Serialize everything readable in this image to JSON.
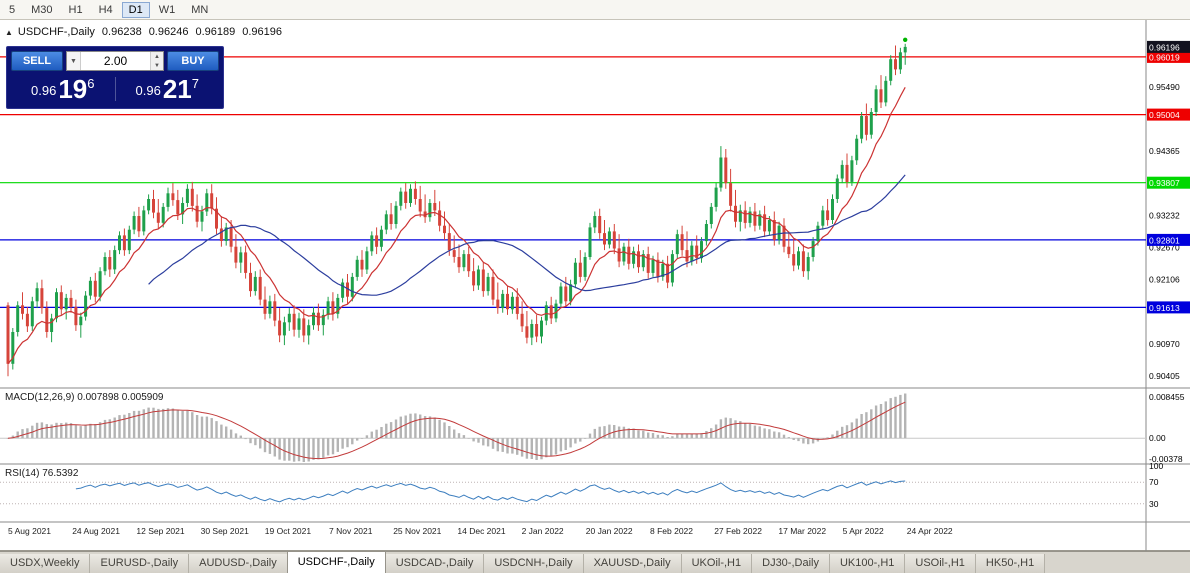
{
  "toolbar": {
    "timeframes": [
      "5",
      "M30",
      "H1",
      "H4",
      "D1",
      "W1",
      "MN"
    ],
    "active": "D1"
  },
  "chart": {
    "title": {
      "icon": "▲",
      "symbol": "USDCHF-,Daily",
      "open": "0.96238",
      "high": "0.96246",
      "low": "0.96189",
      "close": "0.96196"
    },
    "trade_panel": {
      "sell_label": "SELL",
      "buy_label": "BUY",
      "volume": "2.00",
      "icons": {
        "dropdown": "▼",
        "up": "▲",
        "down": "▼"
      },
      "sell_price": {
        "small": "0.96",
        "big": "19",
        "sup": "6"
      },
      "buy_price": {
        "small": "0.96",
        "big": "21",
        "sup": "7"
      }
    },
    "hlines": [
      {
        "price": 0.96019,
        "color": "#ee0000",
        "label": "0.96019"
      },
      {
        "price": 0.95004,
        "color": "#ee0000",
        "label": "0.95004"
      },
      {
        "price": 0.93807,
        "color": "#00d800",
        "label": "0.93807"
      },
      {
        "price": 0.92801,
        "color": "#0000dd",
        "label": "0.92801"
      },
      {
        "price": 0.91613,
        "color": "#0000dd",
        "label": "0.91613"
      }
    ],
    "current_price": {
      "value": 0.96196,
      "label": "0.96196",
      "bg": "#12121f"
    },
    "y_ticks": [
      "0.95490",
      "0.94365",
      "0.93232",
      "0.92670",
      "0.92106",
      "0.90970",
      "0.90405"
    ]
  },
  "macd": {
    "label": "MACD(12,26,9) 0.007898 0.005909",
    "fast": 12,
    "slow": 26,
    "signal_period": 9,
    "value": "0.007898",
    "signal": "0.005909",
    "axis": {
      "top": "0.008455",
      "zero": "0.00",
      "bottom": "-0.00378"
    }
  },
  "rsi": {
    "label": "RSI(14) 76.5392",
    "period": 14,
    "value": "76.5392",
    "levels": [
      "100",
      "70",
      "30"
    ]
  },
  "dates": [
    "5 Aug 2021",
    "24 Aug 2021",
    "12 Sep 2021",
    "30 Sep 2021",
    "19 Oct 2021",
    "7 Nov 2021",
    "25 Nov 2021",
    "14 Dec 2021",
    "2 Jan 2022",
    "20 Jan 2022",
    "8 Feb 2022",
    "27 Feb 2022",
    "17 Mar 2022",
    "5 Apr 2022",
    "24 Apr 2022"
  ],
  "tabs": {
    "active_index": 3,
    "items": [
      "USDX,Weekly",
      "EURUSD-,Daily",
      "AUDUSD-,Daily",
      "USDCHF-,Daily",
      "USDCAD-,Daily",
      "USDCNH-,Daily",
      "XAUUSD-,Daily",
      "UKOil-,H1",
      "DJ30-,Daily",
      "UK100-,H1",
      "USOil-,H1",
      "HK50-,H1"
    ],
    "note": "active tab is USDCHF-,Daily"
  },
  "chart_data": {
    "type": "candlestick",
    "symbol": "USDCHF",
    "timeframe": "Daily",
    "title": "USDCHF-,Daily",
    "y_domain": [
      0.9023,
      0.96493
    ],
    "x_step": 4.85,
    "x_labels": [
      "5 Aug 2021",
      "24 Aug 2021",
      "12 Sep 2021",
      "30 Sep 2021",
      "19 Oct 2021",
      "7 Nov 2021",
      "25 Nov 2021",
      "14 Dec 2021",
      "2 Jan 2022",
      "20 Jan 2022",
      "8 Feb 2022",
      "27 Feb 2022",
      "17 Mar 2022",
      "5 Apr 2022",
      "24 Apr 2022"
    ],
    "ma_fast_period": 10,
    "ma_slow_period": 30,
    "colors": {
      "up": "#1ea04b",
      "down": "#d6443a",
      "ma_fast": "#cc3333",
      "ma_slow": "#2c3e9e",
      "macd_hist": "#b4b4b4",
      "macd_signal": "#c23b3b",
      "rsi": "#3c7ebf"
    },
    "candles": [
      [
        0.9165,
        0.917,
        0.904,
        0.9062
      ],
      [
        0.9062,
        0.9125,
        0.9052,
        0.9118
      ],
      [
        0.9118,
        0.9172,
        0.911,
        0.9165
      ],
      [
        0.9165,
        0.9188,
        0.914,
        0.915
      ],
      [
        0.915,
        0.9162,
        0.9118,
        0.9128
      ],
      [
        0.9128,
        0.918,
        0.912,
        0.9172
      ],
      [
        0.9172,
        0.9205,
        0.916,
        0.9195
      ],
      [
        0.9195,
        0.921,
        0.915,
        0.916
      ],
      [
        0.916,
        0.9172,
        0.9108,
        0.9118
      ],
      [
        0.9118,
        0.915,
        0.91,
        0.9142
      ],
      [
        0.9142,
        0.9195,
        0.9135,
        0.9188
      ],
      [
        0.9188,
        0.92,
        0.9148,
        0.9158
      ],
      [
        0.9158,
        0.9185,
        0.914,
        0.9178
      ],
      [
        0.9178,
        0.9192,
        0.9152,
        0.9162
      ],
      [
        0.9162,
        0.9175,
        0.912,
        0.913
      ],
      [
        0.913,
        0.9152,
        0.9108,
        0.9145
      ],
      [
        0.9145,
        0.919,
        0.9138,
        0.9182
      ],
      [
        0.9182,
        0.9215,
        0.9175,
        0.9208
      ],
      [
        0.9208,
        0.9222,
        0.917,
        0.918
      ],
      [
        0.918,
        0.9232,
        0.9172,
        0.9225
      ],
      [
        0.9225,
        0.9258,
        0.9218,
        0.925
      ],
      [
        0.925,
        0.9262,
        0.9215,
        0.9228
      ],
      [
        0.9228,
        0.927,
        0.922,
        0.9262
      ],
      [
        0.9262,
        0.9295,
        0.9255,
        0.9288
      ],
      [
        0.9288,
        0.93,
        0.9252,
        0.9262
      ],
      [
        0.9262,
        0.9305,
        0.9255,
        0.9298
      ],
      [
        0.9298,
        0.933,
        0.929,
        0.9322
      ],
      [
        0.9322,
        0.9338,
        0.9285,
        0.9295
      ],
      [
        0.9295,
        0.934,
        0.9288,
        0.9332
      ],
      [
        0.9332,
        0.936,
        0.9325,
        0.9352
      ],
      [
        0.9352,
        0.9368,
        0.9318,
        0.9328
      ],
      [
        0.9328,
        0.9352,
        0.93,
        0.931
      ],
      [
        0.931,
        0.9345,
        0.9302,
        0.9338
      ],
      [
        0.9338,
        0.9372,
        0.933,
        0.9362
      ],
      [
        0.9362,
        0.938,
        0.934,
        0.935
      ],
      [
        0.935,
        0.9368,
        0.9315,
        0.9325
      ],
      [
        0.9325,
        0.9355,
        0.9308,
        0.9345
      ],
      [
        0.9345,
        0.9378,
        0.9338,
        0.937
      ],
      [
        0.937,
        0.9382,
        0.933,
        0.934
      ],
      [
        0.934,
        0.936,
        0.9302,
        0.9312
      ],
      [
        0.9312,
        0.934,
        0.9295,
        0.933
      ],
      [
        0.933,
        0.937,
        0.9322,
        0.9362
      ],
      [
        0.9362,
        0.9378,
        0.9325,
        0.9335
      ],
      [
        0.9335,
        0.9355,
        0.929,
        0.93
      ],
      [
        0.93,
        0.9322,
        0.9268,
        0.9278
      ],
      [
        0.9278,
        0.931,
        0.927,
        0.9302
      ],
      [
        0.9302,
        0.9315,
        0.9258,
        0.9268
      ],
      [
        0.9268,
        0.929,
        0.923,
        0.924
      ],
      [
        0.924,
        0.9268,
        0.9222,
        0.9258
      ],
      [
        0.9258,
        0.927,
        0.9212,
        0.9222
      ],
      [
        0.9222,
        0.924,
        0.918,
        0.919
      ],
      [
        0.919,
        0.9225,
        0.9182,
        0.9215
      ],
      [
        0.9215,
        0.9228,
        0.9165,
        0.9175
      ],
      [
        0.9175,
        0.9198,
        0.914,
        0.915
      ],
      [
        0.915,
        0.9182,
        0.9142,
        0.9172
      ],
      [
        0.9172,
        0.9185,
        0.9128,
        0.9138
      ],
      [
        0.9138,
        0.916,
        0.91,
        0.9112
      ],
      [
        0.9112,
        0.9145,
        0.9095,
        0.9135
      ],
      [
        0.9135,
        0.916,
        0.912,
        0.915
      ],
      [
        0.915,
        0.9165,
        0.911,
        0.9122
      ],
      [
        0.9122,
        0.9152,
        0.9108,
        0.9142
      ],
      [
        0.9142,
        0.9158,
        0.91,
        0.9112
      ],
      [
        0.9112,
        0.914,
        0.9096,
        0.913
      ],
      [
        0.913,
        0.9162,
        0.9122,
        0.9152
      ],
      [
        0.9152,
        0.9168,
        0.912,
        0.913
      ],
      [
        0.913,
        0.9158,
        0.9112,
        0.9148
      ],
      [
        0.9148,
        0.918,
        0.914,
        0.9172
      ],
      [
        0.9172,
        0.9188,
        0.9138,
        0.915
      ],
      [
        0.915,
        0.9185,
        0.9142,
        0.9178
      ],
      [
        0.9178,
        0.9212,
        0.917,
        0.9205
      ],
      [
        0.9205,
        0.922,
        0.9168,
        0.918
      ],
      [
        0.918,
        0.9222,
        0.9172,
        0.9215
      ],
      [
        0.9215,
        0.9252,
        0.9208,
        0.9245
      ],
      [
        0.9245,
        0.9262,
        0.9215,
        0.9228
      ],
      [
        0.9228,
        0.9268,
        0.922,
        0.926
      ],
      [
        0.926,
        0.9295,
        0.9252,
        0.9288
      ],
      [
        0.9288,
        0.9302,
        0.9255,
        0.9268
      ],
      [
        0.9268,
        0.9305,
        0.926,
        0.9298
      ],
      [
        0.9298,
        0.9332,
        0.929,
        0.9325
      ],
      [
        0.9325,
        0.9345,
        0.9298,
        0.9308
      ],
      [
        0.9308,
        0.9348,
        0.93,
        0.934
      ],
      [
        0.934,
        0.9372,
        0.9332,
        0.9365
      ],
      [
        0.9365,
        0.938,
        0.9335,
        0.9345
      ],
      [
        0.9345,
        0.9378,
        0.9338,
        0.937
      ],
      [
        0.937,
        0.9383,
        0.9342,
        0.9352
      ],
      [
        0.9352,
        0.9375,
        0.932,
        0.933
      ],
      [
        0.933,
        0.936,
        0.931,
        0.932
      ],
      [
        0.932,
        0.9352,
        0.9312,
        0.9345
      ],
      [
        0.9345,
        0.9368,
        0.9322,
        0.9332
      ],
      [
        0.9332,
        0.9348,
        0.9295,
        0.9305
      ],
      [
        0.9305,
        0.933,
        0.928,
        0.9292
      ],
      [
        0.9292,
        0.9308,
        0.9252,
        0.9262
      ],
      [
        0.9262,
        0.9288,
        0.924,
        0.925
      ],
      [
        0.925,
        0.9272,
        0.9222,
        0.9232
      ],
      [
        0.9232,
        0.9262,
        0.9225,
        0.9255
      ],
      [
        0.9255,
        0.9268,
        0.9215,
        0.9225
      ],
      [
        0.9225,
        0.9248,
        0.919,
        0.92
      ],
      [
        0.92,
        0.9235,
        0.9192,
        0.9228
      ],
      [
        0.9228,
        0.924,
        0.918,
        0.919
      ],
      [
        0.919,
        0.9222,
        0.9182,
        0.9215
      ],
      [
        0.9215,
        0.9228,
        0.9165,
        0.9175
      ],
      [
        0.9175,
        0.9205,
        0.915,
        0.916
      ],
      [
        0.916,
        0.9192,
        0.9152,
        0.9185
      ],
      [
        0.9185,
        0.9198,
        0.9148,
        0.9158
      ],
      [
        0.9158,
        0.9188,
        0.915,
        0.918
      ],
      [
        0.918,
        0.9195,
        0.914,
        0.915
      ],
      [
        0.915,
        0.9172,
        0.9118,
        0.9128
      ],
      [
        0.9128,
        0.9155,
        0.9098,
        0.9108
      ],
      [
        0.9108,
        0.914,
        0.9095,
        0.9132
      ],
      [
        0.9132,
        0.9148,
        0.91,
        0.911
      ],
      [
        0.911,
        0.9145,
        0.9098,
        0.9138
      ],
      [
        0.9138,
        0.9172,
        0.913,
        0.9165
      ],
      [
        0.9165,
        0.918,
        0.9132,
        0.9142
      ],
      [
        0.9142,
        0.9175,
        0.9135,
        0.9168
      ],
      [
        0.9168,
        0.9205,
        0.916,
        0.9198
      ],
      [
        0.9198,
        0.9215,
        0.9162,
        0.9172
      ],
      [
        0.9172,
        0.921,
        0.9165,
        0.9202
      ],
      [
        0.9202,
        0.9248,
        0.9195,
        0.924
      ],
      [
        0.924,
        0.9262,
        0.9205,
        0.9215
      ],
      [
        0.9215,
        0.9258,
        0.9208,
        0.925
      ],
      [
        0.925,
        0.931,
        0.9245,
        0.9302
      ],
      [
        0.9302,
        0.933,
        0.9292,
        0.9322
      ],
      [
        0.9322,
        0.9335,
        0.9282,
        0.9292
      ],
      [
        0.9292,
        0.9315,
        0.9262,
        0.9272
      ],
      [
        0.9272,
        0.9302,
        0.9265,
        0.9295
      ],
      [
        0.9295,
        0.9308,
        0.9255,
        0.9265
      ],
      [
        0.9265,
        0.929,
        0.9232,
        0.9242
      ],
      [
        0.9242,
        0.9275,
        0.9235,
        0.9268
      ],
      [
        0.9268,
        0.9282,
        0.9228,
        0.9238
      ],
      [
        0.9238,
        0.9268,
        0.923,
        0.926
      ],
      [
        0.926,
        0.9272,
        0.9222,
        0.9232
      ],
      [
        0.9232,
        0.9262,
        0.9225,
        0.9255
      ],
      [
        0.9255,
        0.9268,
        0.9212,
        0.9222
      ],
      [
        0.9222,
        0.9252,
        0.9215,
        0.9245
      ],
      [
        0.9245,
        0.9258,
        0.9205,
        0.9215
      ],
      [
        0.9215,
        0.9245,
        0.9208,
        0.9238
      ],
      [
        0.9238,
        0.9252,
        0.9195,
        0.9205
      ],
      [
        0.9205,
        0.9262,
        0.9198,
        0.9255
      ],
      [
        0.9255,
        0.9298,
        0.9248,
        0.929
      ],
      [
        0.929,
        0.9305,
        0.9252,
        0.9262
      ],
      [
        0.9262,
        0.9295,
        0.9232,
        0.9242
      ],
      [
        0.9242,
        0.9278,
        0.9235,
        0.927
      ],
      [
        0.927,
        0.9288,
        0.9238,
        0.9248
      ],
      [
        0.9248,
        0.9285,
        0.924,
        0.9278
      ],
      [
        0.9278,
        0.9315,
        0.927,
        0.9308
      ],
      [
        0.9308,
        0.9345,
        0.93,
        0.9338
      ],
      [
        0.9338,
        0.938,
        0.933,
        0.9372
      ],
      [
        0.9372,
        0.9445,
        0.9365,
        0.9425
      ],
      [
        0.9425,
        0.944,
        0.937,
        0.938
      ],
      [
        0.938,
        0.9405,
        0.933,
        0.934
      ],
      [
        0.934,
        0.9368,
        0.9302,
        0.9312
      ],
      [
        0.9312,
        0.9342,
        0.9295,
        0.9332
      ],
      [
        0.9332,
        0.9348,
        0.93,
        0.931
      ],
      [
        0.931,
        0.9338,
        0.9302,
        0.933
      ],
      [
        0.933,
        0.9345,
        0.9295,
        0.9305
      ],
      [
        0.9305,
        0.9332,
        0.9298,
        0.9325
      ],
      [
        0.9325,
        0.934,
        0.9285,
        0.9295
      ],
      [
        0.9295,
        0.9322,
        0.9288,
        0.9315
      ],
      [
        0.9315,
        0.933,
        0.927,
        0.928
      ],
      [
        0.928,
        0.9312,
        0.9272,
        0.9305
      ],
      [
        0.9305,
        0.9318,
        0.9258,
        0.9268
      ],
      [
        0.9268,
        0.9295,
        0.9248,
        0.9255
      ],
      [
        0.9255,
        0.9282,
        0.9225,
        0.9235
      ],
      [
        0.9235,
        0.9268,
        0.9228,
        0.926
      ],
      [
        0.926,
        0.9272,
        0.9215,
        0.9225
      ],
      [
        0.9225,
        0.9258,
        0.921,
        0.925
      ],
      [
        0.925,
        0.9285,
        0.9242,
        0.9278
      ],
      [
        0.9278,
        0.9312,
        0.927,
        0.9305
      ],
      [
        0.9305,
        0.934,
        0.9298,
        0.9332
      ],
      [
        0.9332,
        0.9352,
        0.9305,
        0.9315
      ],
      [
        0.9315,
        0.936,
        0.9308,
        0.9352
      ],
      [
        0.9352,
        0.9395,
        0.9345,
        0.9388
      ],
      [
        0.9388,
        0.942,
        0.938,
        0.9412
      ],
      [
        0.9412,
        0.9432,
        0.9372,
        0.9382
      ],
      [
        0.9382,
        0.9428,
        0.9375,
        0.942
      ],
      [
        0.942,
        0.9465,
        0.9412,
        0.9458
      ],
      [
        0.9458,
        0.9505,
        0.945,
        0.9498
      ],
      [
        0.9498,
        0.952,
        0.9455,
        0.9465
      ],
      [
        0.9465,
        0.9512,
        0.9458,
        0.9505
      ],
      [
        0.9505,
        0.9552,
        0.9498,
        0.9545
      ],
      [
        0.9545,
        0.957,
        0.9512,
        0.9522
      ],
      [
        0.9522,
        0.9568,
        0.9515,
        0.956
      ],
      [
        0.956,
        0.9605,
        0.9552,
        0.9598
      ],
      [
        0.9598,
        0.9622,
        0.957,
        0.958
      ],
      [
        0.958,
        0.9618,
        0.9572,
        0.961
      ],
      [
        0.961,
        0.9625,
        0.9588,
        0.96196
      ]
    ]
  }
}
